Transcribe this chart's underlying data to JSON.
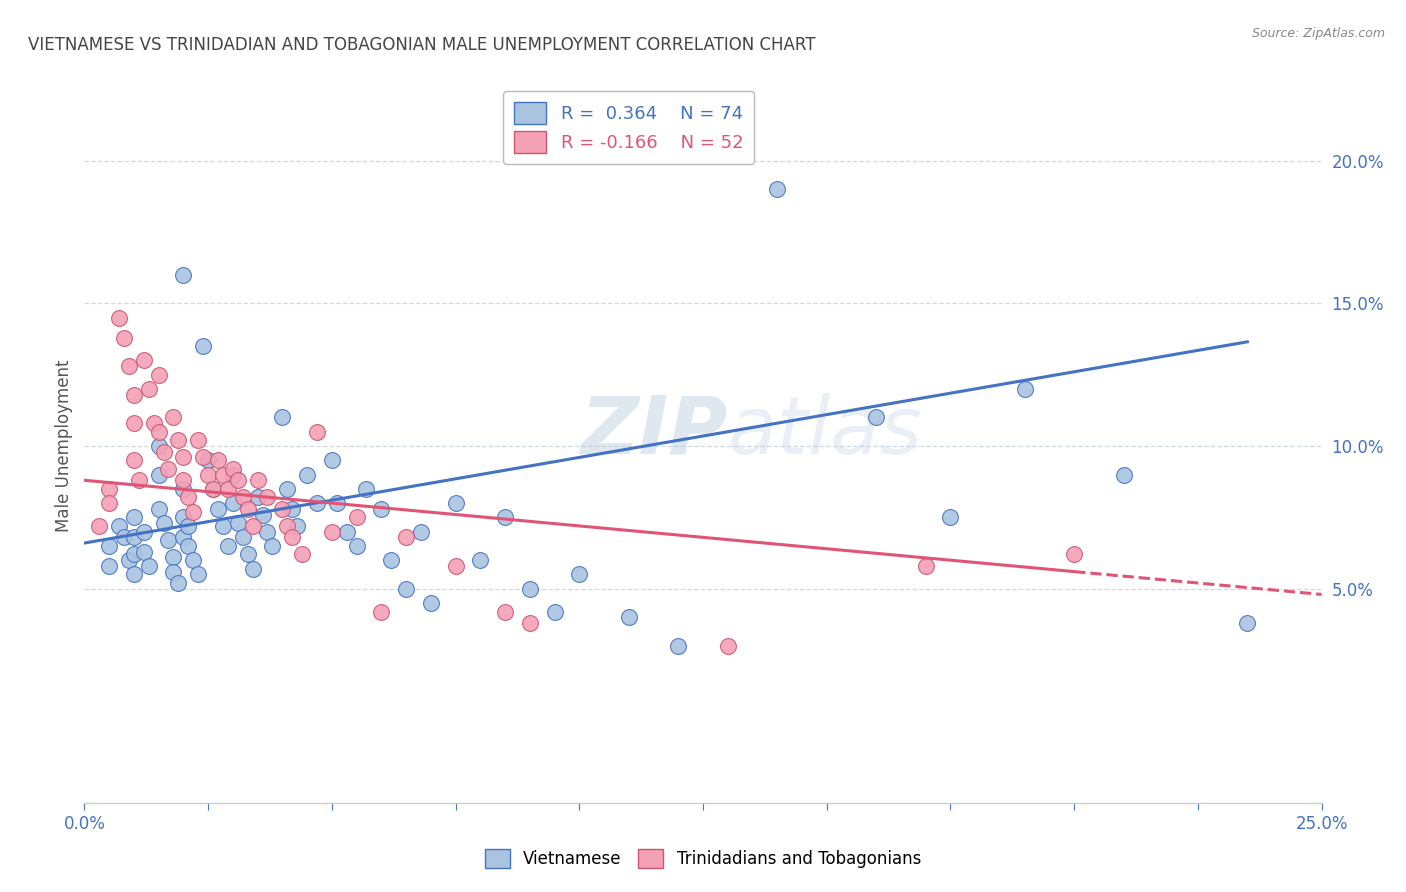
{
  "title": "VIETNAMESE VS TRINIDADIAN AND TOBAGONIAN MALE UNEMPLOYMENT CORRELATION CHART",
  "source": "Source: ZipAtlas.com",
  "ylabel": "Male Unemployment",
  "xlim": [
    0.0,
    0.25
  ],
  "ylim": [
    -0.025,
    0.225
  ],
  "blue_color": "#aac4e0",
  "pink_color": "#f4a0b5",
  "blue_line_color": "#4472c4",
  "pink_line_color": "#e05575",
  "legend_blue_r": "R =  0.364",
  "legend_blue_n": "N = 74",
  "legend_pink_r": "R = -0.166",
  "legend_pink_n": "N = 52",
  "watermark_zip": "ZIP",
  "watermark_atlas": "atlas",
  "background_color": "#ffffff",
  "grid_color": "#d0d8e0",
  "blue_scatter_x": [
    0.005,
    0.005,
    0.007,
    0.008,
    0.009,
    0.01,
    0.01,
    0.01,
    0.01,
    0.012,
    0.012,
    0.013,
    0.015,
    0.015,
    0.015,
    0.016,
    0.017,
    0.018,
    0.018,
    0.019,
    0.02,
    0.02,
    0.02,
    0.02,
    0.021,
    0.021,
    0.022,
    0.023,
    0.024,
    0.025,
    0.026,
    0.027,
    0.028,
    0.029,
    0.03,
    0.03,
    0.031,
    0.032,
    0.033,
    0.034,
    0.035,
    0.036,
    0.037,
    0.038,
    0.04,
    0.041,
    0.042,
    0.043,
    0.045,
    0.047,
    0.05,
    0.051,
    0.053,
    0.055,
    0.057,
    0.06,
    0.062,
    0.065,
    0.068,
    0.07,
    0.075,
    0.08,
    0.085,
    0.09,
    0.095,
    0.1,
    0.11,
    0.12,
    0.14,
    0.16,
    0.175,
    0.19,
    0.21,
    0.235
  ],
  "blue_scatter_y": [
    0.065,
    0.058,
    0.072,
    0.068,
    0.06,
    0.075,
    0.068,
    0.062,
    0.055,
    0.07,
    0.063,
    0.058,
    0.1,
    0.09,
    0.078,
    0.073,
    0.067,
    0.061,
    0.056,
    0.052,
    0.16,
    0.085,
    0.075,
    0.068,
    0.072,
    0.065,
    0.06,
    0.055,
    0.135,
    0.095,
    0.085,
    0.078,
    0.072,
    0.065,
    0.09,
    0.08,
    0.073,
    0.068,
    0.062,
    0.057,
    0.082,
    0.076,
    0.07,
    0.065,
    0.11,
    0.085,
    0.078,
    0.072,
    0.09,
    0.08,
    0.095,
    0.08,
    0.07,
    0.065,
    0.085,
    0.078,
    0.06,
    0.05,
    0.07,
    0.045,
    0.08,
    0.06,
    0.075,
    0.05,
    0.042,
    0.055,
    0.04,
    0.03,
    0.19,
    0.11,
    0.075,
    0.12,
    0.09,
    0.038
  ],
  "pink_scatter_x": [
    0.003,
    0.005,
    0.005,
    0.007,
    0.008,
    0.009,
    0.01,
    0.01,
    0.01,
    0.011,
    0.012,
    0.013,
    0.014,
    0.015,
    0.015,
    0.016,
    0.017,
    0.018,
    0.019,
    0.02,
    0.02,
    0.021,
    0.022,
    0.023,
    0.024,
    0.025,
    0.026,
    0.027,
    0.028,
    0.029,
    0.03,
    0.031,
    0.032,
    0.033,
    0.034,
    0.035,
    0.037,
    0.04,
    0.041,
    0.042,
    0.044,
    0.047,
    0.05,
    0.055,
    0.06,
    0.065,
    0.075,
    0.085,
    0.09,
    0.13,
    0.17,
    0.2
  ],
  "pink_scatter_y": [
    0.072,
    0.085,
    0.08,
    0.145,
    0.138,
    0.128,
    0.118,
    0.108,
    0.095,
    0.088,
    0.13,
    0.12,
    0.108,
    0.125,
    0.105,
    0.098,
    0.092,
    0.11,
    0.102,
    0.096,
    0.088,
    0.082,
    0.077,
    0.102,
    0.096,
    0.09,
    0.085,
    0.095,
    0.09,
    0.085,
    0.092,
    0.088,
    0.082,
    0.078,
    0.072,
    0.088,
    0.082,
    0.078,
    0.072,
    0.068,
    0.062,
    0.105,
    0.07,
    0.075,
    0.042,
    0.068,
    0.058,
    0.042,
    0.038,
    0.03,
    0.058,
    0.062
  ]
}
